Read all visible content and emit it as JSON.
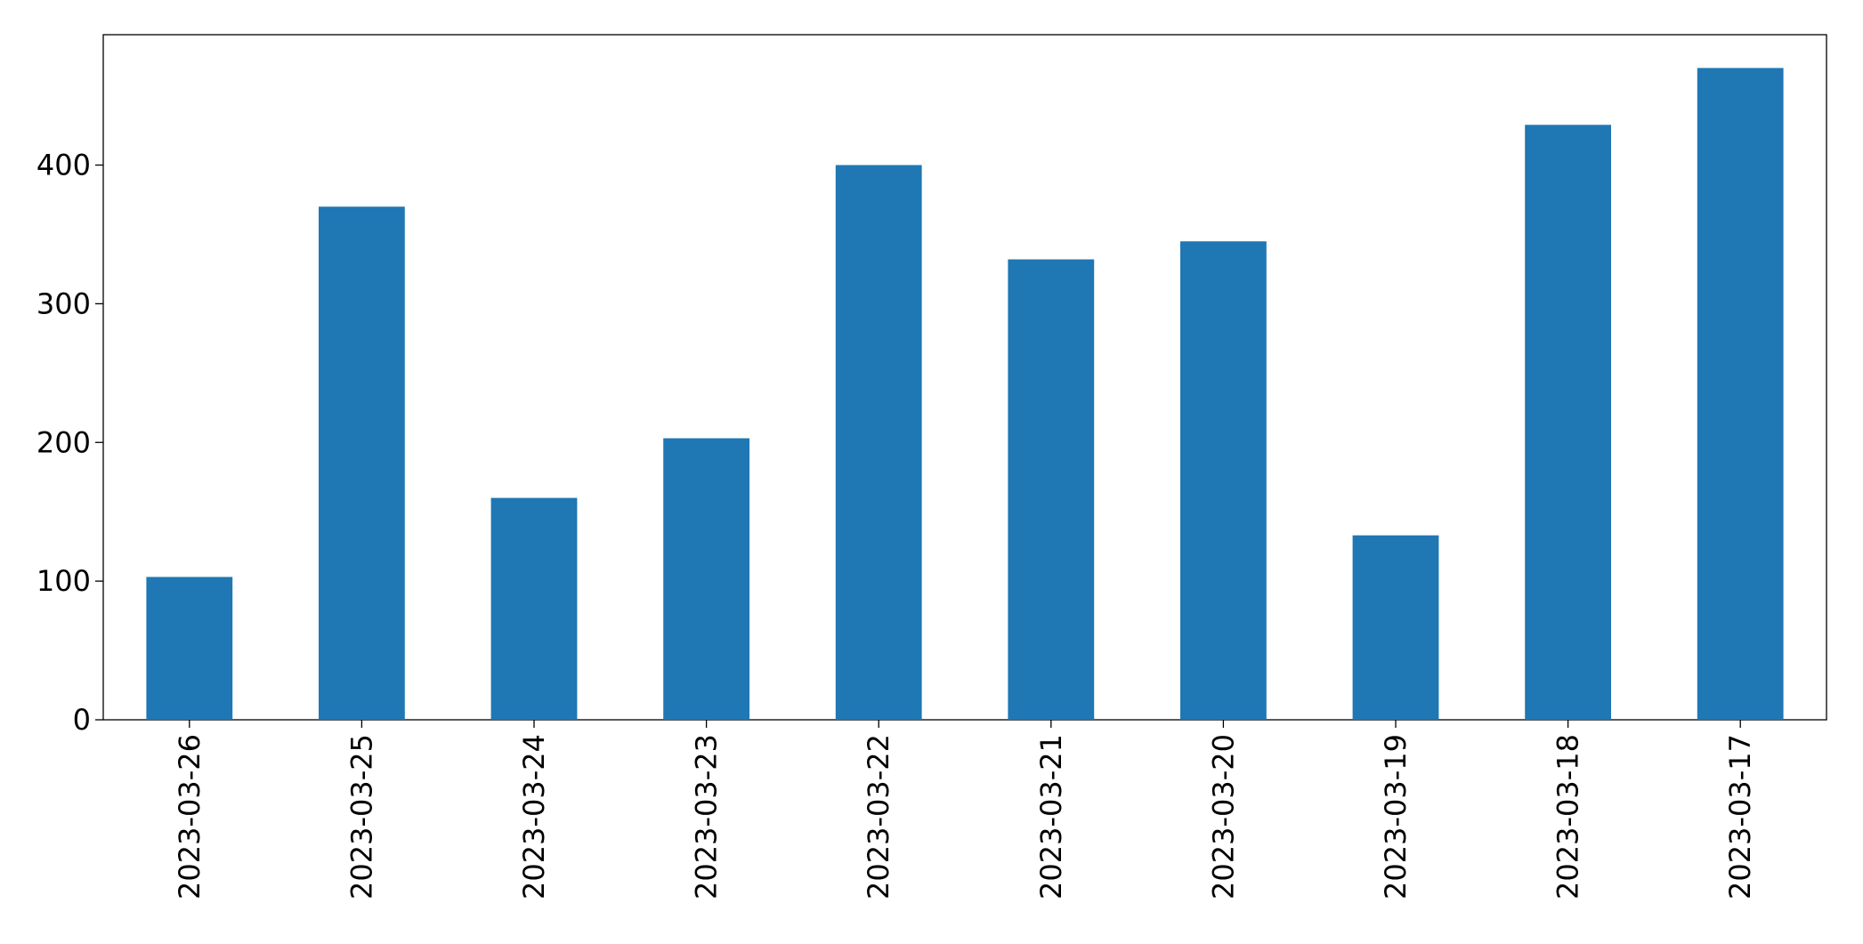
{
  "chart_data": {
    "type": "bar",
    "categories": [
      "2023-03-26",
      "2023-03-25",
      "2023-03-24",
      "2023-03-23",
      "2023-03-22",
      "2023-03-21",
      "2023-03-20",
      "2023-03-19",
      "2023-03-18",
      "2023-03-17"
    ],
    "values": [
      103,
      370,
      160,
      203,
      400,
      332,
      345,
      133,
      429,
      470
    ],
    "color": "#1f77b4",
    "ylim": [
      0,
      494
    ],
    "yticks": [
      0,
      100,
      200,
      300,
      400
    ],
    "grid": false
  }
}
